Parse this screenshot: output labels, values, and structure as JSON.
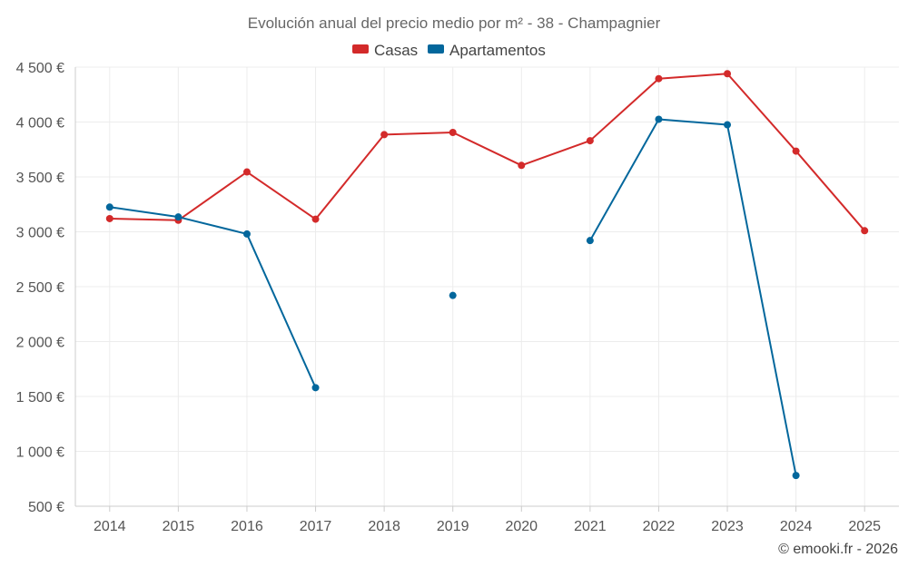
{
  "chart_data": {
    "type": "line",
    "title": "Evolución anual del precio medio por m² - 38 - Champagnier",
    "xlabel": "",
    "ylabel": "",
    "categories": [
      "2014",
      "2015",
      "2016",
      "2017",
      "2018",
      "2019",
      "2020",
      "2021",
      "2022",
      "2023",
      "2024",
      "2025"
    ],
    "ylim": [
      500,
      4500
    ],
    "yticks": [
      500,
      1000,
      1500,
      2000,
      2500,
      3000,
      3500,
      4000,
      4500
    ],
    "ytick_labels": [
      "500 €",
      "1 000 €",
      "1 500 €",
      "2 000 €",
      "2 500 €",
      "3 000 €",
      "3 500 €",
      "4 000 €",
      "4 500 €"
    ],
    "grid": true,
    "legend_position": "top-center",
    "series": [
      {
        "name": "Casas",
        "color": "#d32a2a",
        "values": [
          3120,
          3105,
          3545,
          3115,
          3885,
          3905,
          3605,
          3830,
          4395,
          4440,
          3735,
          3010
        ]
      },
      {
        "name": "Apartamentos",
        "color": "#03679c",
        "values": [
          3225,
          3135,
          2980,
          1580,
          null,
          2420,
          null,
          2920,
          4025,
          3975,
          780,
          null
        ]
      }
    ],
    "credit": "© emooki.fr - 2026"
  }
}
